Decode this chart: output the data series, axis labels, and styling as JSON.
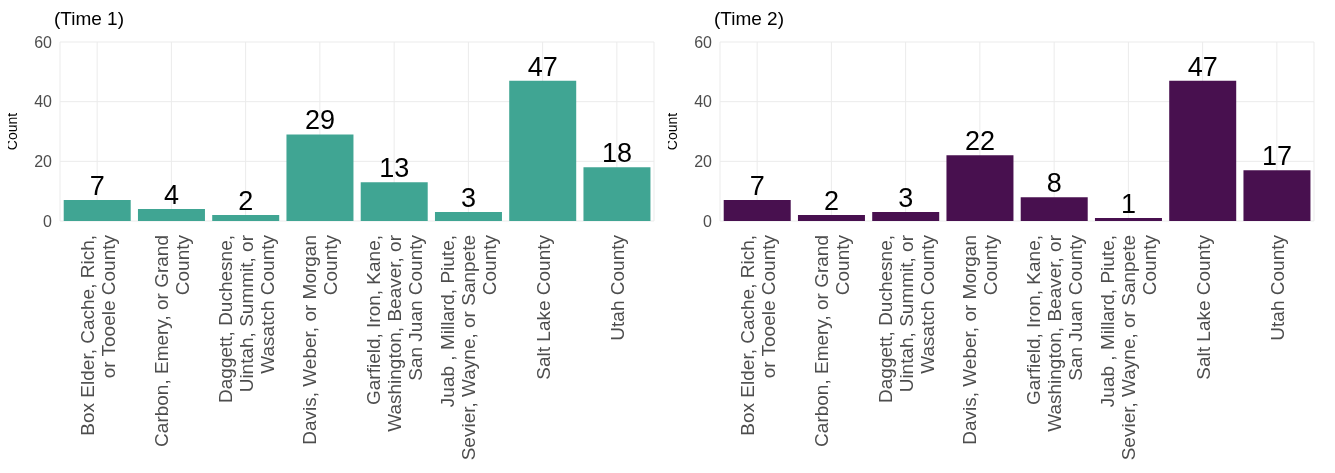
{
  "chart_data": [
    {
      "type": "bar",
      "title": "(Time 1)",
      "ylabel": "Count",
      "categories": [
        "Box Elder, Cache, Rich,\nor Tooele County",
        "Carbon, Emery, or Grand\nCounty",
        "Daggett, Duchesne,\nUintah, Summit, or\nWasatch County",
        "Davis, Weber, or Morgan\nCounty",
        "Garfield, Iron, Kane,\nWashington, Beaver, or\nSan Juan County",
        "Juab , Millard, Piute,\nSevier, Wayne, or Sanpete\nCounty",
        "Salt Lake County",
        "Utah County"
      ],
      "values": [
        7,
        4,
        2,
        29,
        13,
        3,
        47,
        18
      ],
      "color": "#40a593",
      "ylim": [
        0,
        60
      ],
      "yticks": [
        0,
        20,
        40,
        60
      ],
      "grid": true,
      "data_labels": true
    },
    {
      "type": "bar",
      "title": "(Time 2)",
      "ylabel": "Count",
      "categories": [
        "Box Elder, Cache, Rich,\nor Tooele County",
        "Carbon, Emery, or Grand\nCounty",
        "Daggett, Duchesne,\nUintah, Summit, or\nWasatch County",
        "Davis, Weber, or Morgan\nCounty",
        "Garfield, Iron, Kane,\nWashington, Beaver, or\nSan Juan County",
        "Juab , Millard, Piute,\nSevier, Wayne, or Sanpete\nCounty",
        "Salt Lake County",
        "Utah County"
      ],
      "values": [
        7,
        2,
        3,
        22,
        8,
        1,
        47,
        17
      ],
      "color": "#48104f",
      "ylim": [
        0,
        60
      ],
      "yticks": [
        0,
        20,
        40,
        60
      ],
      "grid": true,
      "data_labels": true
    }
  ]
}
